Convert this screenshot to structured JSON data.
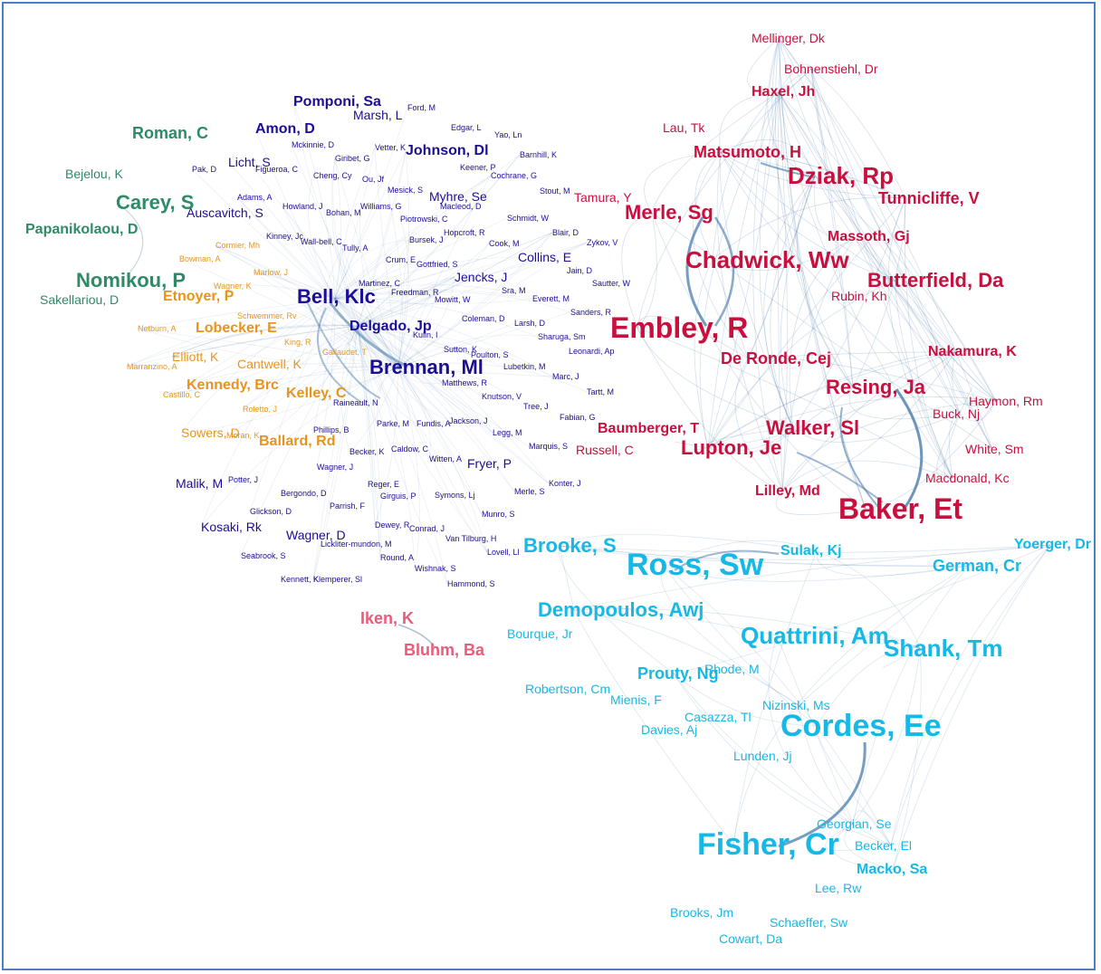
{
  "clusters": {
    "pink": {
      "color": "#c8103f"
    },
    "cyan": {
      "color": "#16b8e6"
    },
    "navy": {
      "color": "#1c0d96"
    },
    "orange": {
      "color": "#e8941c"
    },
    "green": {
      "color": "#2f8a66"
    },
    "rose": {
      "color": "#ea5b7a"
    }
  },
  "edge_color": "#3f74a6",
  "nodes": [
    {
      "label": "Mellinger, Dk",
      "cluster": "pink",
      "weight": 1
    },
    {
      "label": "Bohnenstiehl, Dr",
      "cluster": "pink",
      "weight": 1
    },
    {
      "label": "Haxel, Jh",
      "cluster": "pink",
      "weight": 2
    },
    {
      "label": "Lau, Tk",
      "cluster": "pink",
      "weight": 1
    },
    {
      "label": "Matsumoto, H",
      "cluster": "pink",
      "weight": 3
    },
    {
      "label": "Dziak, Rp",
      "cluster": "pink",
      "weight": 5
    },
    {
      "label": "Tunnicliffe, V",
      "cluster": "pink",
      "weight": 3
    },
    {
      "label": "Tamura, Y",
      "cluster": "pink",
      "weight": 1
    },
    {
      "label": "Merle, Sg",
      "cluster": "pink",
      "weight": 4
    },
    {
      "label": "Massoth, Gj",
      "cluster": "pink",
      "weight": 2
    },
    {
      "label": "Chadwick, Ww",
      "cluster": "pink",
      "weight": 5
    },
    {
      "label": "Butterfield, Da",
      "cluster": "pink",
      "weight": 4
    },
    {
      "label": "Rubin, Kh",
      "cluster": "pink",
      "weight": 1
    },
    {
      "label": "Embley, R",
      "cluster": "pink",
      "weight": 6
    },
    {
      "label": "De Ronde, Cej",
      "cluster": "pink",
      "weight": 3
    },
    {
      "label": "Nakamura, K",
      "cluster": "pink",
      "weight": 2
    },
    {
      "label": "Resing, Ja",
      "cluster": "pink",
      "weight": 4
    },
    {
      "label": "Haymon, Rm",
      "cluster": "pink",
      "weight": 1
    },
    {
      "label": "Buck, Nj",
      "cluster": "pink",
      "weight": 1
    },
    {
      "label": "Baumberger, T",
      "cluster": "pink",
      "weight": 2
    },
    {
      "label": "Walker, Sl",
      "cluster": "pink",
      "weight": 4
    },
    {
      "label": "Lupton, Je",
      "cluster": "pink",
      "weight": 4
    },
    {
      "label": "White, Sm",
      "cluster": "pink",
      "weight": 1
    },
    {
      "label": "Macdonald, Kc",
      "cluster": "pink",
      "weight": 1
    },
    {
      "label": "Lilley, Md",
      "cluster": "pink",
      "weight": 2
    },
    {
      "label": "Baker, Et",
      "cluster": "pink",
      "weight": 6
    },
    {
      "label": "Russell, C",
      "cluster": "pink",
      "weight": 1
    },
    {
      "label": "Ross, Sw",
      "cluster": "cyan",
      "weight": 7
    },
    {
      "label": "Brooke, S",
      "cluster": "cyan",
      "weight": 4
    },
    {
      "label": "Sulak, Kj",
      "cluster": "cyan",
      "weight": 2
    },
    {
      "label": "Yoerger, Dr",
      "cluster": "cyan",
      "weight": 2
    },
    {
      "label": "German, Cr",
      "cluster": "cyan",
      "weight": 3
    },
    {
      "label": "Demopoulos, Awj",
      "cluster": "cyan",
      "weight": 4
    },
    {
      "label": "Bourque, Jr",
      "cluster": "cyan",
      "weight": 1
    },
    {
      "label": "Quattrini, Am",
      "cluster": "cyan",
      "weight": 5
    },
    {
      "label": "Shank, Tm",
      "cluster": "cyan",
      "weight": 5
    },
    {
      "label": "Prouty, Ng",
      "cluster": "cyan",
      "weight": 3
    },
    {
      "label": "Rhode, M",
      "cluster": "cyan",
      "weight": 1
    },
    {
      "label": "Robertson, Cm",
      "cluster": "cyan",
      "weight": 1
    },
    {
      "label": "Mienis, F",
      "cluster": "cyan",
      "weight": 1
    },
    {
      "label": "Nizinski, Ms",
      "cluster": "cyan",
      "weight": 1
    },
    {
      "label": "Casazza, Tl",
      "cluster": "cyan",
      "weight": 1
    },
    {
      "label": "Davies, Aj",
      "cluster": "cyan",
      "weight": 1
    },
    {
      "label": "Cordes, Ee",
      "cluster": "cyan",
      "weight": 7
    },
    {
      "label": "Lunden, Jj",
      "cluster": "cyan",
      "weight": 1
    },
    {
      "label": "Georgian, Se",
      "cluster": "cyan",
      "weight": 1
    },
    {
      "label": "Fisher, Cr",
      "cluster": "cyan",
      "weight": 7
    },
    {
      "label": "Becker, El",
      "cluster": "cyan",
      "weight": 1
    },
    {
      "label": "Macko, Sa",
      "cluster": "cyan",
      "weight": 2
    },
    {
      "label": "Lee, Rw",
      "cluster": "cyan",
      "weight": 1
    },
    {
      "label": "Brooks, Jm",
      "cluster": "cyan",
      "weight": 1
    },
    {
      "label": "Schaeffer, Sw",
      "cluster": "cyan",
      "weight": 1
    },
    {
      "label": "Cowart, Da",
      "cluster": "cyan",
      "weight": 1
    },
    {
      "label": "Iken, K",
      "cluster": "rose",
      "weight": 3
    },
    {
      "label": "Bluhm, Ba",
      "cluster": "rose",
      "weight": 3
    },
    {
      "label": "Roman, C",
      "cluster": "green",
      "weight": 3
    },
    {
      "label": "Bejelou, K",
      "cluster": "green",
      "weight": 1
    },
    {
      "label": "Carey, S",
      "cluster": "green",
      "weight": 4
    },
    {
      "label": "Papanikolaou, D",
      "cluster": "green",
      "weight": 2
    },
    {
      "label": "Nomikou, P",
      "cluster": "green",
      "weight": 4
    },
    {
      "label": "Sakellariou, D",
      "cluster": "green",
      "weight": 1
    },
    {
      "label": "Cormier, Mh",
      "cluster": "orange",
      "weight": 0
    },
    {
      "label": "Bowman, A",
      "cluster": "orange",
      "weight": 0
    },
    {
      "label": "Marlow, J",
      "cluster": "orange",
      "weight": 0
    },
    {
      "label": "Wagner, K",
      "cluster": "orange",
      "weight": 0
    },
    {
      "label": "Etnoyer, P",
      "cluster": "orange",
      "weight": 2
    },
    {
      "label": "Schwemmer, Rv",
      "cluster": "orange",
      "weight": 0
    },
    {
      "label": "Netburn, A",
      "cluster": "orange",
      "weight": 0
    },
    {
      "label": "Lobecker, E",
      "cluster": "orange",
      "weight": 2
    },
    {
      "label": "King, R",
      "cluster": "orange",
      "weight": 0
    },
    {
      "label": "Gallaudet, T",
      "cluster": "orange",
      "weight": 0
    },
    {
      "label": "Elliott, K",
      "cluster": "orange",
      "weight": 1
    },
    {
      "label": "Marranzino, A",
      "cluster": "orange",
      "weight": 0
    },
    {
      "label": "Cantwell, K",
      "cluster": "orange",
      "weight": 1
    },
    {
      "label": "Kennedy, Brc",
      "cluster": "orange",
      "weight": 2
    },
    {
      "label": "Castillo, C",
      "cluster": "orange",
      "weight": 0
    },
    {
      "label": "Kelley, C",
      "cluster": "orange",
      "weight": 2
    },
    {
      "label": "Roletto, J",
      "cluster": "orange",
      "weight": 0
    },
    {
      "label": "Sowers, D",
      "cluster": "orange",
      "weight": 1
    },
    {
      "label": "Moran, K",
      "cluster": "orange",
      "weight": 0
    },
    {
      "label": "Ballard, Rd",
      "cluster": "orange",
      "weight": 2
    },
    {
      "label": "Pomponi, Sa",
      "cluster": "navy",
      "weight": 2
    },
    {
      "label": "Ford, M",
      "cluster": "navy",
      "weight": 0
    },
    {
      "label": "Marsh, L",
      "cluster": "navy",
      "weight": 1
    },
    {
      "label": "Amon, D",
      "cluster": "navy",
      "weight": 2
    },
    {
      "label": "Edgar, L",
      "cluster": "navy",
      "weight": 0
    },
    {
      "label": "Yao, Ln",
      "cluster": "navy",
      "weight": 0
    },
    {
      "label": "Mckinnie, D",
      "cluster": "navy",
      "weight": 0
    },
    {
      "label": "Vetter, K",
      "cluster": "navy",
      "weight": 0
    },
    {
      "label": "Johnson, Dl",
      "cluster": "navy",
      "weight": 2
    },
    {
      "label": "Giribet, G",
      "cluster": "navy",
      "weight": 0
    },
    {
      "label": "Barnhill, K",
      "cluster": "navy",
      "weight": 0
    },
    {
      "label": "Licht, S",
      "cluster": "navy",
      "weight": 1
    },
    {
      "label": "Pak, D",
      "cluster": "navy",
      "weight": 0
    },
    {
      "label": "Figueroa, C",
      "cluster": "navy",
      "weight": 0
    },
    {
      "label": "Cheng, Cy",
      "cluster": "navy",
      "weight": 0
    },
    {
      "label": "Ou, Jf",
      "cluster": "navy",
      "weight": 0
    },
    {
      "label": "Keener, P",
      "cluster": "navy",
      "weight": 0
    },
    {
      "label": "Cochrane, G",
      "cluster": "navy",
      "weight": 0
    },
    {
      "label": "Mesick, S",
      "cluster": "navy",
      "weight": 0
    },
    {
      "label": "Stout, M",
      "cluster": "navy",
      "weight": 0
    },
    {
      "label": "Adams, A",
      "cluster": "navy",
      "weight": 0
    },
    {
      "label": "Myhre, Se",
      "cluster": "navy",
      "weight": 1
    },
    {
      "label": "Howland, J",
      "cluster": "navy",
      "weight": 0
    },
    {
      "label": "Williams, G",
      "cluster": "navy",
      "weight": 0
    },
    {
      "label": "Macleod, D",
      "cluster": "navy",
      "weight": 0
    },
    {
      "label": "Auscavitch, S",
      "cluster": "navy",
      "weight": 1
    },
    {
      "label": "Bohan, M",
      "cluster": "navy",
      "weight": 0
    },
    {
      "label": "Schmidt, W",
      "cluster": "navy",
      "weight": 0
    },
    {
      "label": "Piotrowski, C",
      "cluster": "navy",
      "weight": 0
    },
    {
      "label": "Hopcroft, R",
      "cluster": "navy",
      "weight": 0
    },
    {
      "label": "Blair, D",
      "cluster": "navy",
      "weight": 0
    },
    {
      "label": "Kinney, Jc",
      "cluster": "navy",
      "weight": 0
    },
    {
      "label": "Wall-bell, C",
      "cluster": "navy",
      "weight": 0
    },
    {
      "label": "Tully, A",
      "cluster": "navy",
      "weight": 0
    },
    {
      "label": "Bursek, J",
      "cluster": "navy",
      "weight": 0
    },
    {
      "label": "Cook, M",
      "cluster": "navy",
      "weight": 0
    },
    {
      "label": "Zykov, V",
      "cluster": "navy",
      "weight": 0
    },
    {
      "label": "Crum, E",
      "cluster": "navy",
      "weight": 0
    },
    {
      "label": "Gottfried, S",
      "cluster": "navy",
      "weight": 0
    },
    {
      "label": "Collins, E",
      "cluster": "navy",
      "weight": 1
    },
    {
      "label": "Jencks, J",
      "cluster": "navy",
      "weight": 1
    },
    {
      "label": "Jain, D",
      "cluster": "navy",
      "weight": 0
    },
    {
      "label": "Sautter, W",
      "cluster": "navy",
      "weight": 0
    },
    {
      "label": "Martinez, C",
      "cluster": "navy",
      "weight": 0
    },
    {
      "label": "Bell, Klc",
      "cluster": "navy",
      "weight": 4
    },
    {
      "label": "Freedman, R",
      "cluster": "navy",
      "weight": 0
    },
    {
      "label": "Sra, M",
      "cluster": "navy",
      "weight": 0
    },
    {
      "label": "Mowitt, W",
      "cluster": "navy",
      "weight": 0
    },
    {
      "label": "Everett, M",
      "cluster": "navy",
      "weight": 0
    },
    {
      "label": "Sanders, R",
      "cluster": "navy",
      "weight": 0
    },
    {
      "label": "Coleman, D",
      "cluster": "navy",
      "weight": 0
    },
    {
      "label": "Larsh, D",
      "cluster": "navy",
      "weight": 0
    },
    {
      "label": "Delgado, Jp",
      "cluster": "navy",
      "weight": 2
    },
    {
      "label": "Kulin, I",
      "cluster": "navy",
      "weight": 0
    },
    {
      "label": "Sharuga, Sm",
      "cluster": "navy",
      "weight": 0
    },
    {
      "label": "Sutton, K",
      "cluster": "navy",
      "weight": 0
    },
    {
      "label": "Poulton, S",
      "cluster": "navy",
      "weight": 0
    },
    {
      "label": "Leonardi, Ap",
      "cluster": "navy",
      "weight": 0
    },
    {
      "label": "Brennan, Ml",
      "cluster": "navy",
      "weight": 4
    },
    {
      "label": "Lubetkin, M",
      "cluster": "navy",
      "weight": 0
    },
    {
      "label": "Marc, J",
      "cluster": "navy",
      "weight": 0
    },
    {
      "label": "Matthews, R",
      "cluster": "navy",
      "weight": 0
    },
    {
      "label": "Knutson, V",
      "cluster": "navy",
      "weight": 0
    },
    {
      "label": "Tartt, M",
      "cluster": "navy",
      "weight": 0
    },
    {
      "label": "Raineault, N",
      "cluster": "navy",
      "weight": 0
    },
    {
      "label": "Tree, J",
      "cluster": "navy",
      "weight": 0
    },
    {
      "label": "Fabian, G",
      "cluster": "navy",
      "weight": 0
    },
    {
      "label": "Phillips, B",
      "cluster": "navy",
      "weight": 0
    },
    {
      "label": "Parke, M",
      "cluster": "navy",
      "weight": 0
    },
    {
      "label": "Fundis, A",
      "cluster": "navy",
      "weight": 0
    },
    {
      "label": "Jackson, J",
      "cluster": "navy",
      "weight": 0
    },
    {
      "label": "Legg, M",
      "cluster": "navy",
      "weight": 0
    },
    {
      "label": "Becker, K",
      "cluster": "navy",
      "weight": 0
    },
    {
      "label": "Caldow, C",
      "cluster": "navy",
      "weight": 0
    },
    {
      "label": "Marquis, S",
      "cluster": "navy",
      "weight": 0
    },
    {
      "label": "Wagner, J",
      "cluster": "navy",
      "weight": 0
    },
    {
      "label": "Witten, A",
      "cluster": "navy",
      "weight": 0
    },
    {
      "label": "Fryer, P",
      "cluster": "navy",
      "weight": 1
    },
    {
      "label": "Malik, M",
      "cluster": "navy",
      "weight": 1
    },
    {
      "label": "Potter, J",
      "cluster": "navy",
      "weight": 0
    },
    {
      "label": "Reger, E",
      "cluster": "navy",
      "weight": 0
    },
    {
      "label": "Konter, J",
      "cluster": "navy",
      "weight": 0
    },
    {
      "label": "Bergondo, D",
      "cluster": "navy",
      "weight": 0
    },
    {
      "label": "Girguis, P",
      "cluster": "navy",
      "weight": 0
    },
    {
      "label": "Symons, Lj",
      "cluster": "navy",
      "weight": 0
    },
    {
      "label": "Merle, S",
      "cluster": "navy",
      "weight": 0
    },
    {
      "label": "Parrish, F",
      "cluster": "navy",
      "weight": 0
    },
    {
      "label": "Glickson, D",
      "cluster": "navy",
      "weight": 0
    },
    {
      "label": "Munro, S",
      "cluster": "navy",
      "weight": 0
    },
    {
      "label": "Kosaki, Rk",
      "cluster": "navy",
      "weight": 1
    },
    {
      "label": "Dewey, R",
      "cluster": "navy",
      "weight": 0
    },
    {
      "label": "Conrad, J",
      "cluster": "navy",
      "weight": 0
    },
    {
      "label": "Wagner, D",
      "cluster": "navy",
      "weight": 1
    },
    {
      "label": "Van Tilburg, H",
      "cluster": "navy",
      "weight": 0
    },
    {
      "label": "Lickliter-mundon, M",
      "cluster": "navy",
      "weight": 0
    },
    {
      "label": "Lovell, Ll",
      "cluster": "navy",
      "weight": 0
    },
    {
      "label": "Seabrook, S",
      "cluster": "navy",
      "weight": 0
    },
    {
      "label": "Round, A",
      "cluster": "navy",
      "weight": 0
    },
    {
      "label": "Wishnak, S",
      "cluster": "navy",
      "weight": 0
    },
    {
      "label": "Kennett, K",
      "cluster": "navy",
      "weight": 0
    },
    {
      "label": "Klemperer, Sl",
      "cluster": "navy",
      "weight": 0
    },
    {
      "label": "Hammond, S",
      "cluster": "navy",
      "weight": 0
    }
  ]
}
